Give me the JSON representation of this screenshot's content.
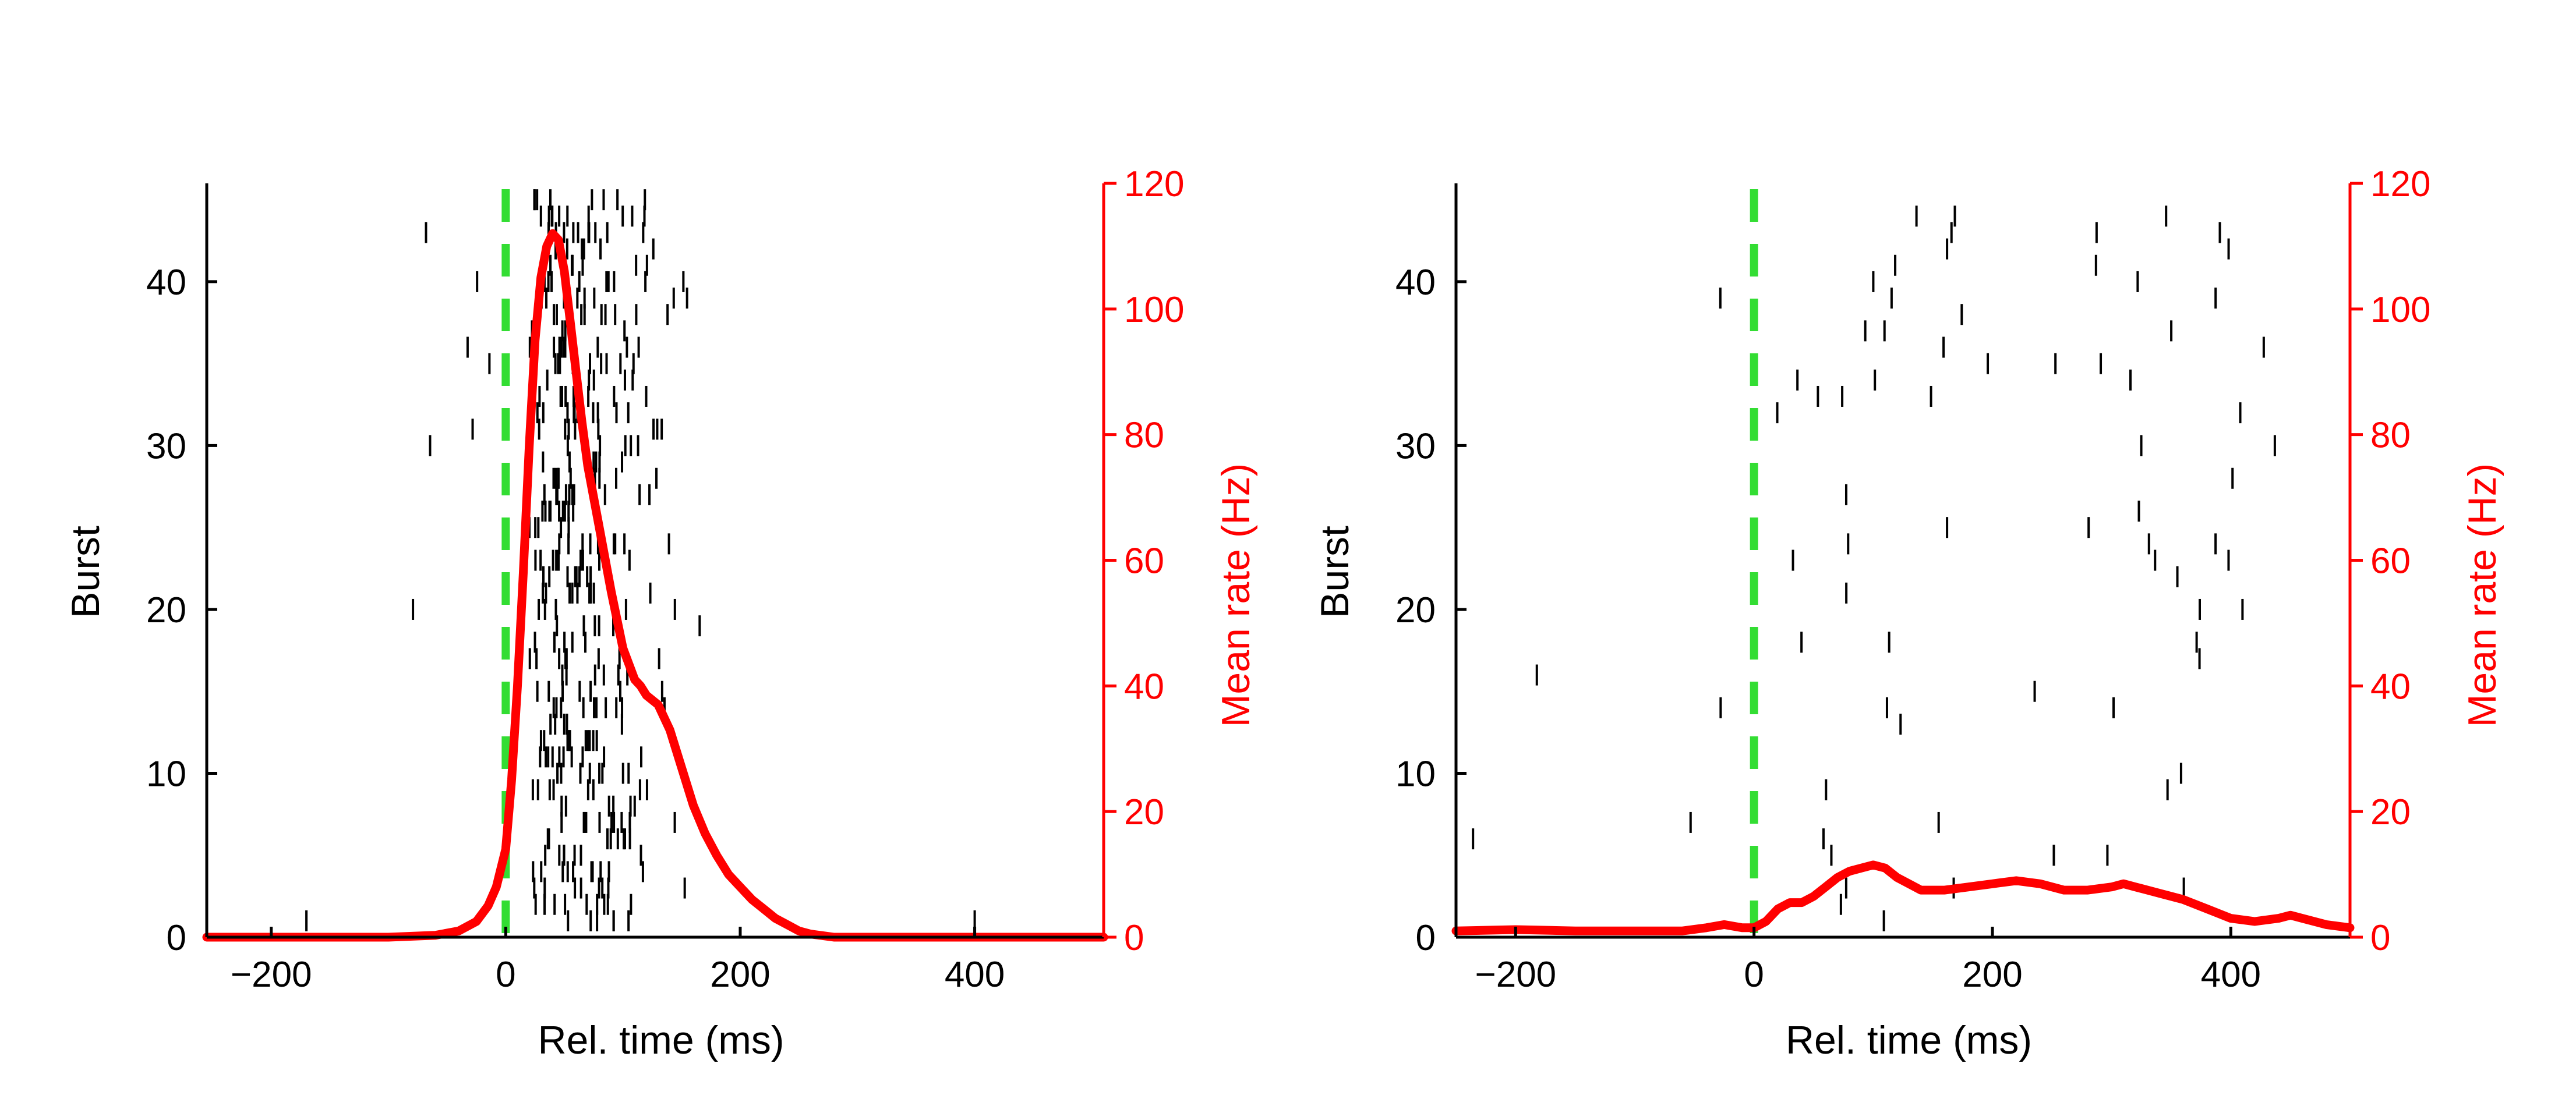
{
  "chart_data": [
    {
      "type": "raster",
      "panel": "left",
      "xlabel": "Rel. time (ms)",
      "ylabel": "Burst",
      "y2label": "Mean rate (Hz)",
      "xlim": [
        -255,
        510
      ],
      "ylim": [
        0,
        46
      ],
      "y2lim": [
        0,
        120
      ],
      "xticks": [
        -200,
        0,
        200,
        400
      ],
      "yticks": [
        0,
        10,
        20,
        30,
        40
      ],
      "y2ticks": [
        0,
        20,
        40,
        60,
        80,
        100,
        120
      ],
      "event_line_x": 0,
      "colors": {
        "raster": "#000000",
        "rate": "#ff0000",
        "event_line": "#33dd33",
        "axis2": "#ff0000"
      },
      "rate_series": {
        "x": [
          -255,
          -150,
          -100,
          -60,
          -40,
          -25,
          -15,
          -8,
          0,
          5,
          10,
          15,
          20,
          25,
          30,
          35,
          40,
          45,
          50,
          55,
          60,
          65,
          70,
          80,
          90,
          100,
          110,
          115,
          120,
          130,
          140,
          150,
          160,
          170,
          180,
          190,
          200,
          210,
          220,
          230,
          240,
          250,
          260,
          280,
          350,
          510
        ],
        "y": [
          0,
          0,
          0,
          0.3,
          1,
          2.5,
          5,
          8,
          14,
          25,
          40,
          58,
          78,
          95,
          105,
          110,
          112,
          111,
          106,
          98,
          90,
          82,
          75,
          65,
          55,
          46,
          41,
          40,
          38.5,
          37,
          33,
          27,
          21,
          16.5,
          13,
          10,
          8,
          6,
          4.5,
          3,
          2,
          1,
          0.5,
          0,
          0,
          0
        ]
      }
    },
    {
      "type": "raster",
      "panel": "right",
      "xlabel": "Rel. time (ms)",
      "ylabel": "Burst",
      "y2label": "Mean rate (Hz)",
      "xlim": [
        -250,
        500
      ],
      "ylim": [
        0,
        46
      ],
      "y2lim": [
        0,
        120
      ],
      "xticks": [
        -200,
        0,
        200,
        400
      ],
      "yticks": [
        0,
        10,
        20,
        30,
        40
      ],
      "y2ticks": [
        0,
        20,
        40,
        60,
        80,
        100,
        120
      ],
      "event_line_x": 0,
      "colors": {
        "raster": "#000000",
        "rate": "#ff0000",
        "event_line": "#33dd33",
        "axis2": "#ff0000"
      },
      "rate_series": {
        "x": [
          -250,
          -200,
          -150,
          -100,
          -60,
          -40,
          -25,
          -10,
          0,
          10,
          20,
          30,
          40,
          50,
          60,
          70,
          80,
          90,
          100,
          110,
          120,
          130,
          140,
          160,
          180,
          200,
          220,
          240,
          260,
          280,
          300,
          310,
          320,
          340,
          360,
          380,
          400,
          420,
          440,
          450,
          460,
          480,
          500
        ],
        "y": [
          1,
          1.2,
          1,
          1,
          1,
          1.5,
          2,
          1.5,
          1.5,
          2.5,
          4.5,
          5.5,
          5.5,
          6.5,
          8,
          9.5,
          10.5,
          11,
          11.5,
          11,
          9.5,
          8.5,
          7.5,
          7.5,
          8,
          8.5,
          9,
          8.5,
          7.5,
          7.5,
          8,
          8.5,
          8,
          7,
          6,
          4.5,
          3,
          2.5,
          3,
          3.5,
          3,
          2,
          1.5
        ]
      }
    }
  ]
}
